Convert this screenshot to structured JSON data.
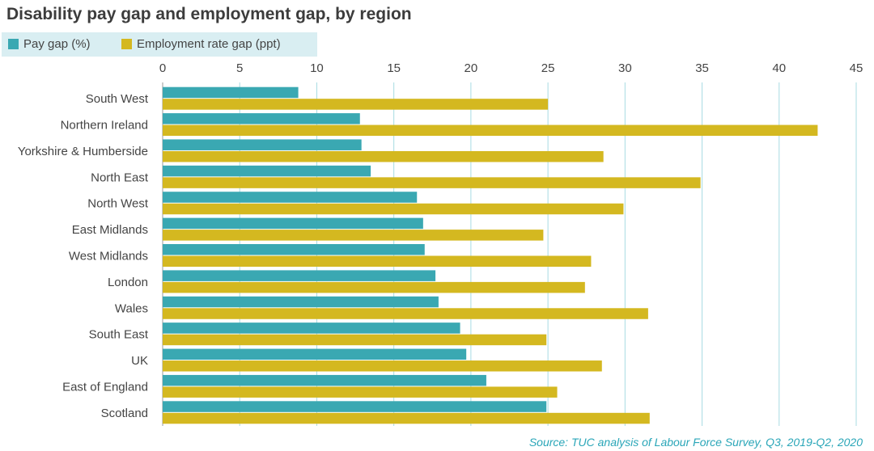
{
  "title": "Disability pay gap and employment gap, by region",
  "source": "Source: TUC analysis of Labour Force Survey, Q3, 2019-Q2, 2020",
  "colors": {
    "pay_gap": "#3aa8b2",
    "employment_gap": "#d4b820",
    "grid": "#a8dbe2",
    "tick_text": "#444444"
  },
  "chart_data": {
    "type": "bar",
    "orientation": "horizontal",
    "title": "Disability pay gap and employment gap, by region",
    "categories": [
      "South West",
      "Northern Ireland",
      "Yorkshire & Humberside",
      "North East",
      "North West",
      "East Midlands",
      "West Midlands",
      "London",
      "Wales",
      "South East",
      "UK",
      "East of England",
      "Scotland"
    ],
    "series": [
      {
        "name": "Pay gap (%)",
        "values": [
          8.8,
          12.8,
          12.9,
          13.5,
          16.5,
          16.9,
          17.0,
          17.7,
          17.9,
          19.3,
          19.7,
          21.0,
          24.9
        ]
      },
      {
        "name": "Employment rate gap (ppt)",
        "values": [
          25.0,
          42.5,
          28.6,
          34.9,
          29.9,
          24.7,
          27.8,
          27.4,
          31.5,
          24.9,
          28.5,
          25.6,
          31.6
        ]
      }
    ],
    "xlim": [
      0,
      45
    ],
    "xticks": [
      0,
      5,
      10,
      15,
      20,
      25,
      30,
      35,
      40,
      45
    ],
    "xtick_labels": [
      "0",
      "5",
      "10",
      "15",
      "20",
      "25",
      "30",
      "35",
      "40",
      "45"
    ],
    "grid": true,
    "legend_position": "top-left"
  }
}
